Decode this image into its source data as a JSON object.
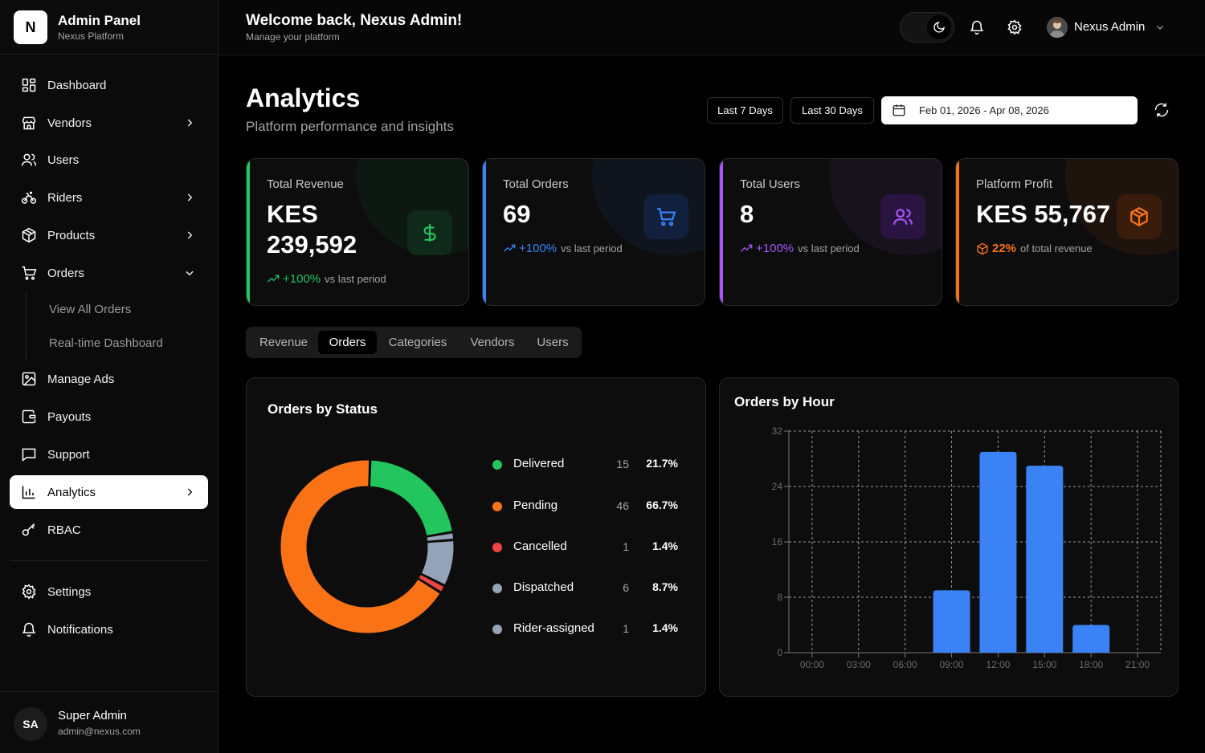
{
  "brand": {
    "logo_letter": "N",
    "title": "Admin Panel",
    "subtitle": "Nexus Platform"
  },
  "sidebar": {
    "items": [
      {
        "label": "Dashboard",
        "icon": "dashboard-icon"
      },
      {
        "label": "Vendors",
        "icon": "store-icon",
        "expandable": true
      },
      {
        "label": "Users",
        "icon": "users-icon"
      },
      {
        "label": "Riders",
        "icon": "bike-icon",
        "expandable": true
      },
      {
        "label": "Products",
        "icon": "box-icon",
        "expandable": true
      },
      {
        "label": "Orders",
        "icon": "cart-icon",
        "expanded": true
      },
      {
        "label": "Manage Ads",
        "icon": "image-icon"
      },
      {
        "label": "Payouts",
        "icon": "wallet-icon"
      },
      {
        "label": "Support",
        "icon": "chat-icon"
      },
      {
        "label": "Analytics",
        "icon": "chart-icon",
        "active": true
      },
      {
        "label": "RBAC",
        "icon": "key-icon"
      },
      {
        "label": "Settings",
        "icon": "gear-icon"
      },
      {
        "label": "Notifications",
        "icon": "bell-icon"
      }
    ],
    "orders_sub": [
      "View All Orders",
      "Real-time Dashboard"
    ],
    "footer": {
      "initials": "SA",
      "name": "Super Admin",
      "email": "admin@nexus.com"
    }
  },
  "header": {
    "welcome": "Welcome back, Nexus Admin!",
    "subtitle": "Manage your platform",
    "user_name": "Nexus Admin",
    "theme": "dark"
  },
  "page": {
    "title": "Analytics",
    "subtitle": "Platform performance and insights",
    "range_buttons": [
      "Last 7 Days",
      "Last 30 Days"
    ],
    "date_range": "Feb 01, 2026 - Apr 08, 2026"
  },
  "stats": [
    {
      "title": "Total Revenue",
      "value_line1": "KES",
      "value_line2": "239,592",
      "trend_pct": "+100%",
      "trend_text": "vs last period",
      "color": "#22c55e",
      "icon": "dollar-icon"
    },
    {
      "title": "Total Orders",
      "value": "69",
      "trend_pct": "+100%",
      "trend_text": "vs last period",
      "color": "#3b82f6",
      "icon": "cart-icon"
    },
    {
      "title": "Total Users",
      "value": "8",
      "trend_pct": "+100%",
      "trend_text": "vs last period",
      "color": "#a855f7",
      "icon": "users-icon"
    },
    {
      "title": "Platform Profit",
      "value": "KES 55,767",
      "trend_pct": "22%",
      "trend_text": "of total revenue",
      "color": "#f97316",
      "icon": "box-icon"
    }
  ],
  "tabs": {
    "items": [
      "Revenue",
      "Orders",
      "Categories",
      "Vendors",
      "Users"
    ],
    "active": "Orders"
  },
  "status_panel": {
    "title": "Orders by Status",
    "legend": [
      {
        "name": "Delivered",
        "count": "15",
        "pct": "21.7%",
        "color": "#22c55e"
      },
      {
        "name": "Pending",
        "count": "46",
        "pct": "66.7%",
        "color": "#f97316"
      },
      {
        "name": "Cancelled",
        "count": "1",
        "pct": "1.4%",
        "color": "#ef4444"
      },
      {
        "name": "Dispatched",
        "count": "6",
        "pct": "8.7%",
        "color": "#94a3b8"
      },
      {
        "name": "Rider-assigned",
        "count": "1",
        "pct": "1.4%",
        "color": "#94a3b8"
      }
    ]
  },
  "hour_panel": {
    "title": "Orders by Hour"
  },
  "chart_data": [
    {
      "type": "pie",
      "variant": "donut",
      "title": "Orders by Status",
      "labels": [
        "Delivered",
        "Rider-assigned",
        "Dispatched",
        "Cancelled",
        "Pending"
      ],
      "values": [
        15,
        1,
        6,
        1,
        46
      ],
      "colors": [
        "#22c55e",
        "#94a3b8",
        "#94a3b8",
        "#ef4444",
        "#f97316"
      ]
    },
    {
      "type": "bar",
      "title": "Orders by Hour",
      "x_ticks": [
        "00:00",
        "03:00",
        "06:00",
        "09:00",
        "12:00",
        "15:00",
        "18:00",
        "21:00"
      ],
      "categories": [
        "09:00",
        "12:00",
        "15:00",
        "18:00"
      ],
      "values": [
        9,
        29,
        27,
        4
      ],
      "ylim": [
        0,
        32
      ],
      "y_ticks": [
        0,
        8,
        16,
        24,
        32
      ],
      "grid": true,
      "grid_style": "dashed",
      "color": "#3b82f6"
    }
  ]
}
